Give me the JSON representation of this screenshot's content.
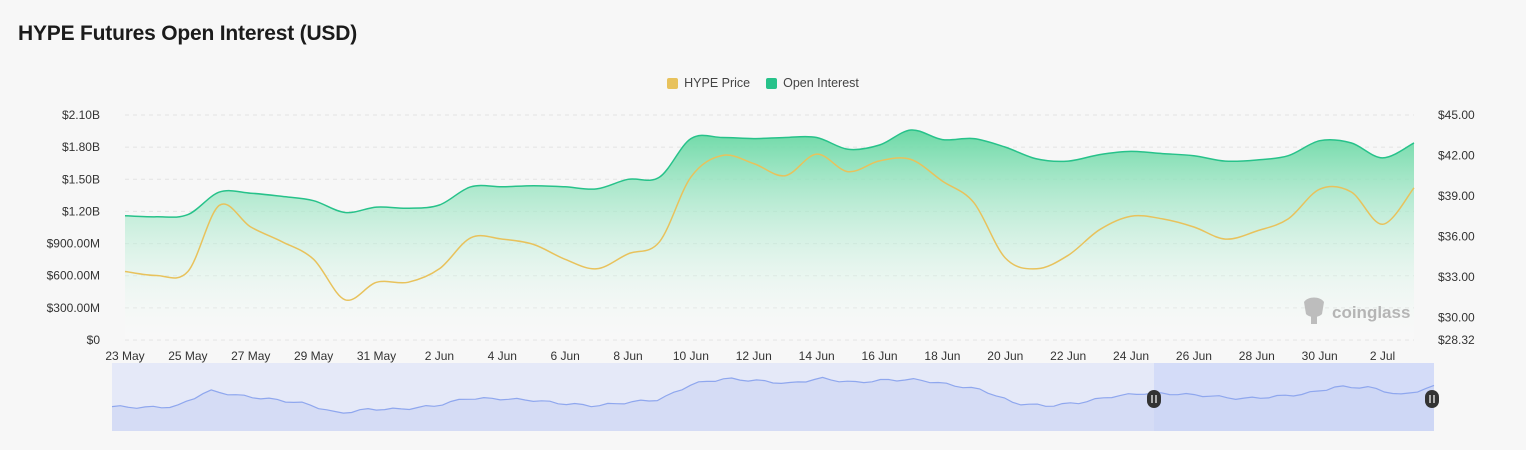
{
  "title": "HYPE Futures Open Interest (USD)",
  "colors": {
    "price": "#e8c25c",
    "oi": "#27c28a",
    "oi_fill_top": "#6cd9a6",
    "navigator": "#8fa7ee",
    "navigator_fill": "#e5e9f8",
    "navigator_selected": "#d4dcf8"
  },
  "watermark": "coinglass",
  "chart_data": {
    "type": "area",
    "title": "HYPE Futures Open Interest (USD)",
    "x": [
      "23 May",
      "24 May",
      "25 May",
      "26 May",
      "27 May",
      "28 May",
      "29 May",
      "30 May",
      "31 May",
      "1 Jun",
      "2 Jun",
      "3 Jun",
      "4 Jun",
      "5 Jun",
      "6 Jun",
      "7 Jun",
      "8 Jun",
      "9 Jun",
      "10 Jun",
      "11 Jun",
      "12 Jun",
      "13 Jun",
      "14 Jun",
      "15 Jun",
      "16 Jun",
      "17 Jun",
      "18 Jun",
      "19 Jun",
      "20 Jun",
      "21 Jun",
      "22 Jun",
      "23 Jun",
      "24 Jun",
      "25 Jun",
      "26 Jun",
      "27 Jun",
      "28 Jun",
      "29 Jun",
      "30 Jun",
      "1 Jul",
      "2 Jul",
      "3 Jul"
    ],
    "x_tick_labels": [
      "23 May",
      "25 May",
      "27 May",
      "29 May",
      "31 May",
      "2 Jun",
      "4 Jun",
      "6 Jun",
      "8 Jun",
      "10 Jun",
      "12 Jun",
      "14 Jun",
      "16 Jun",
      "18 Jun",
      "20 Jun",
      "22 Jun",
      "24 Jun",
      "26 Jun",
      "28 Jun",
      "30 Jun",
      "2 Jul"
    ],
    "legend": [
      "HYPE Price",
      "Open Interest"
    ],
    "legend_position": "top-center",
    "y_left": {
      "tick_labels": [
        "$0",
        "$300.00M",
        "$600.00M",
        "$900.00M",
        "$1.20B",
        "$1.50B",
        "$1.80B",
        "$2.10B"
      ],
      "ticks": [
        0,
        300000000,
        600000000,
        900000000,
        1200000000,
        1500000000,
        1800000000,
        2100000000
      ],
      "range": [
        0,
        2100000000
      ]
    },
    "y_right": {
      "tick_labels": [
        "$28.32",
        "$30.00",
        "$33.00",
        "$36.00",
        "$39.00",
        "$42.00",
        "$45.00"
      ],
      "ticks": [
        28.32,
        30,
        33,
        36,
        39,
        42,
        45
      ],
      "range": [
        28.32,
        45
      ]
    },
    "grid": "horizontal-dashed",
    "series": [
      {
        "name": "Open Interest",
        "axis": "left",
        "kind": "area",
        "values": [
          1160000000.0,
          1150000000.0,
          1170000000.0,
          1380000000.0,
          1370000000.0,
          1340000000.0,
          1300000000.0,
          1190000000.0,
          1240000000.0,
          1230000000.0,
          1260000000.0,
          1430000000.0,
          1430000000.0,
          1440000000.0,
          1430000000.0,
          1410000000.0,
          1500000000.0,
          1520000000.0,
          1880000000.0,
          1890000000.0,
          1880000000.0,
          1890000000.0,
          1890000000.0,
          1780000000.0,
          1820000000.0,
          1960000000.0,
          1870000000.0,
          1880000000.0,
          1800000000.0,
          1690000000.0,
          1670000000.0,
          1730000000.0,
          1760000000.0,
          1740000000.0,
          1720000000.0,
          1670000000.0,
          1680000000.0,
          1720000000.0,
          1860000000.0,
          1840000000.0,
          1700000000.0,
          1840000000.0
        ]
      },
      {
        "name": "HYPE Price",
        "axis": "right",
        "kind": "line",
        "values": [
          33.4,
          33.1,
          33.4,
          38.3,
          36.7,
          35.6,
          34.3,
          31.3,
          32.6,
          32.6,
          33.6,
          35.9,
          35.8,
          35.4,
          34.3,
          33.6,
          34.7,
          35.6,
          40.4,
          42.0,
          41.4,
          40.5,
          42.1,
          40.8,
          41.6,
          41.7,
          40.1,
          38.5,
          34.4,
          33.6,
          34.6,
          36.5,
          37.5,
          37.3,
          36.7,
          35.8,
          36.4,
          37.3,
          39.5,
          39.3,
          36.9,
          39.6
        ]
      }
    ]
  }
}
